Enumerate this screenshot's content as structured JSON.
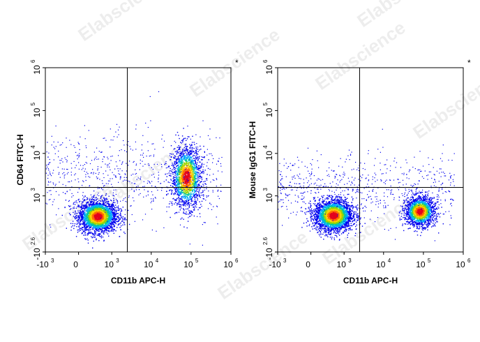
{
  "watermark": "Elabscience",
  "watermark_mark": "®",
  "chart_data": [
    {
      "type": "scatter",
      "name": "panel-cd64",
      "xlabel": "CD11b APC-H",
      "ylabel": "CD64 FITC-H",
      "corner_mark": "*",
      "x_scale": "biexponential",
      "y_scale": "biexponential",
      "x_ticks": [
        {
          "base": "-10",
          "exp": "3",
          "value": -1000
        },
        {
          "base": "0",
          "exp": "",
          "value": 0
        },
        {
          "base": "10",
          "exp": "3",
          "value": 1000
        },
        {
          "base": "10",
          "exp": "4",
          "value": 10000
        },
        {
          "base": "10",
          "exp": "5",
          "value": 100000
        },
        {
          "base": "10",
          "exp": "6",
          "value": 1000000
        }
      ],
      "y_ticks": [
        {
          "base": "-10",
          "exp": "2.6",
          "value": -398
        },
        {
          "base": "10",
          "exp": "3",
          "value": 1000
        },
        {
          "base": "10",
          "exp": "4",
          "value": 10000
        },
        {
          "base": "10",
          "exp": "5",
          "value": 100000
        },
        {
          "base": "10",
          "exp": "6",
          "value": 1000000
        }
      ],
      "quadrant_gate": {
        "x": 2500,
        "y": 1600
      },
      "populations": [
        {
          "center_x": 400,
          "center_y": 280,
          "count": 2800,
          "color_density": "high"
        },
        {
          "center_x": 75000,
          "center_y": 2800,
          "count": 1900,
          "color_density": "high"
        }
      ]
    },
    {
      "type": "scatter",
      "name": "panel-isotype",
      "xlabel": "CD11b APC-H",
      "ylabel": "Mouse IgG1 FITC-H",
      "corner_mark": "*",
      "x_scale": "biexponential",
      "y_scale": "biexponential",
      "x_ticks": [
        {
          "base": "-10",
          "exp": "3",
          "value": -1000
        },
        {
          "base": "0",
          "exp": "",
          "value": 0
        },
        {
          "base": "10",
          "exp": "3",
          "value": 1000
        },
        {
          "base": "10",
          "exp": "4",
          "value": 10000
        },
        {
          "base": "10",
          "exp": "5",
          "value": 100000
        },
        {
          "base": "10",
          "exp": "6",
          "value": 1000000
        }
      ],
      "y_ticks": [
        {
          "base": "-10",
          "exp": "2.6",
          "value": -398
        },
        {
          "base": "10",
          "exp": "3",
          "value": 1000
        },
        {
          "base": "10",
          "exp": "4",
          "value": 10000
        },
        {
          "base": "10",
          "exp": "5",
          "value": 100000
        },
        {
          "base": "10",
          "exp": "6",
          "value": 1000000
        }
      ],
      "quadrant_gate": {
        "x": 2500,
        "y": 1600
      },
      "populations": [
        {
          "center_x": 500,
          "center_y": 300,
          "count": 2800,
          "color_density": "high"
        },
        {
          "center_x": 80000,
          "center_y": 400,
          "count": 1800,
          "color_density": "high"
        }
      ]
    }
  ]
}
